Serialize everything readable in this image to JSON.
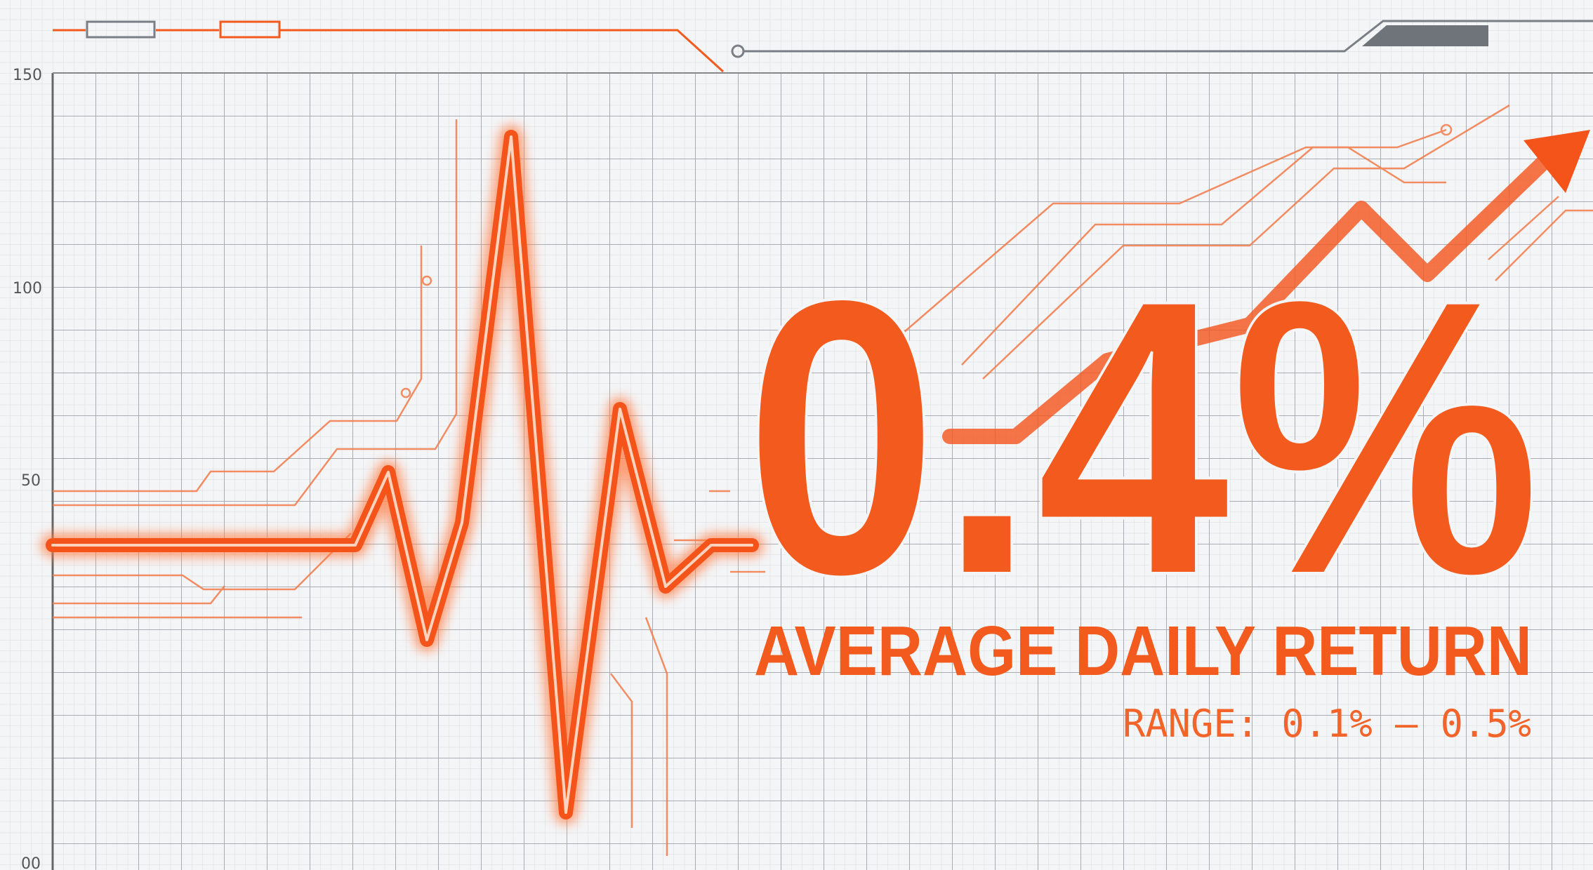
{
  "axis": {
    "labels": [
      "150",
      "100",
      "50",
      "00"
    ]
  },
  "headline": "0.4%",
  "subtitle": "AVERAGE DAILY RETURN",
  "range": "RANGE: 0.1% – 0.5%"
}
